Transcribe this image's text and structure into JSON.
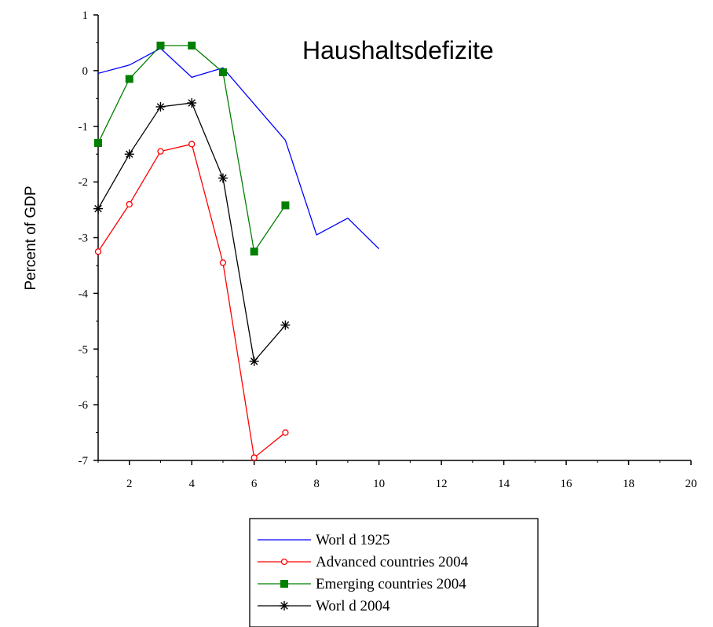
{
  "chart_data": {
    "type": "line",
    "title": "Haushaltsdefizite",
    "xlabel": "",
    "ylabel": "Percent of GDP",
    "xlim": [
      1,
      20
    ],
    "ylim": [
      -7,
      1
    ],
    "x_ticks": [
      2,
      4,
      6,
      8,
      10,
      12,
      14,
      16,
      18,
      20
    ],
    "y_ticks": [
      1,
      0,
      -1,
      -2,
      -3,
      -4,
      -5,
      -6,
      -7
    ],
    "grid": false,
    "legend_position": "bottom",
    "series": [
      {
        "name": "Worl d 1925",
        "color": "#0000ff",
        "marker": "none",
        "x": [
          1,
          2,
          3,
          4,
          5,
          6,
          7,
          8,
          9,
          10
        ],
        "y": [
          -0.05,
          0.1,
          0.4,
          -0.12,
          0.05,
          -0.6,
          -1.25,
          -2.95,
          -2.65,
          -3.2
        ]
      },
      {
        "name": "Advanced countries 2004",
        "color": "#ff0000",
        "marker": "open-circle",
        "x": [
          1,
          2,
          3,
          4,
          5,
          6,
          7
        ],
        "y": [
          -3.25,
          -2.4,
          -1.45,
          -1.32,
          -3.45,
          -6.95,
          -6.5
        ]
      },
      {
        "name": "Emerging countries 2004",
        "color": "#008000",
        "marker": "filled-square",
        "x": [
          1,
          2,
          3,
          4,
          5,
          6,
          7
        ],
        "y": [
          -1.3,
          -0.15,
          0.45,
          0.45,
          -0.03,
          -3.25,
          -2.42
        ]
      },
      {
        "name": "Worl d 2004",
        "color": "#000000",
        "marker": "star",
        "x": [
          1,
          2,
          3,
          4,
          5,
          6,
          7
        ],
        "y": [
          -2.48,
          -1.5,
          -0.65,
          -0.58,
          -1.93,
          -5.22,
          -4.57
        ]
      }
    ]
  }
}
